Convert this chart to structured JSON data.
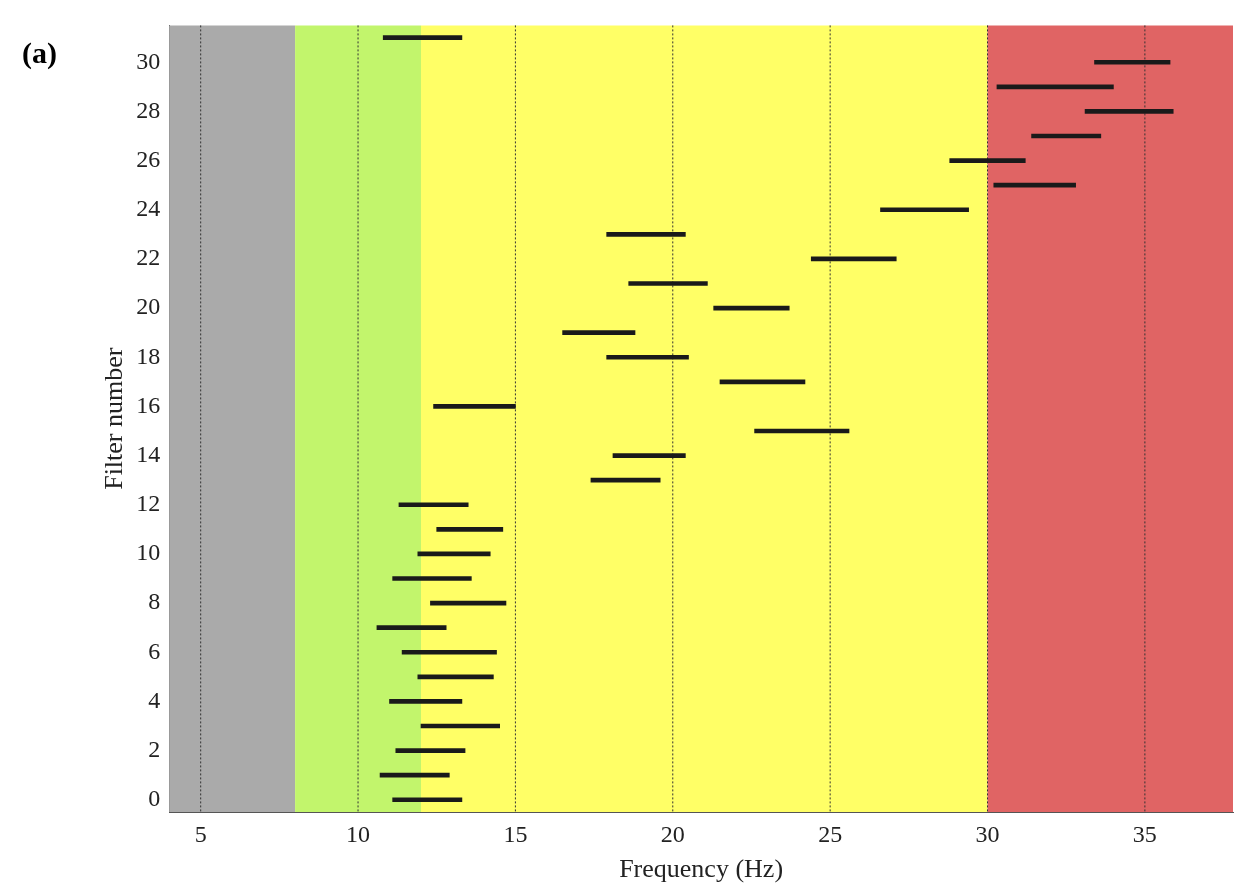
{
  "chart_data": {
    "type": "bar",
    "orientation": "horizontal",
    "xlabel": "Frequency (Hz)",
    "ylabel": "Filter number",
    "annotations": [
      "(a)"
    ],
    "categories": [
      null,
      "30",
      null,
      "28",
      null,
      "26",
      null,
      "24",
      null,
      "22",
      null,
      "20",
      null,
      "18",
      null,
      "16",
      null,
      "14",
      null,
      "12",
      null,
      "10",
      null,
      "8",
      null,
      "6",
      null,
      "4",
      null,
      "2",
      null,
      "0"
    ],
    "base": [
      10.8,
      33.4,
      30.3,
      33.1,
      31.4,
      28.8,
      30.2,
      26.6,
      17.9,
      24.4,
      18.6,
      21.3,
      16.5,
      17.9,
      21.5,
      12.4,
      22.6,
      18.1,
      17.4,
      11.3,
      12.5,
      11.9,
      11.1,
      12.3,
      10.6,
      11.4,
      11.9,
      11.0,
      12.0,
      11.2,
      10.7,
      11.1
    ],
    "values": [
      2.5,
      2.4,
      3.7,
      2.8,
      2.2,
      2.4,
      2.6,
      2.8,
      2.5,
      2.7,
      2.5,
      2.4,
      2.3,
      2.6,
      2.7,
      2.6,
      3.0,
      2.3,
      2.2,
      2.2,
      2.1,
      2.3,
      2.5,
      2.4,
      2.2,
      3.0,
      2.4,
      2.3,
      2.5,
      2.2,
      2.2,
      2.2
    ],
    "color": "#1a1a1a",
    "xlim": [
      4,
      37.8
    ],
    "xticks": [
      5,
      10,
      15,
      20,
      25,
      30,
      35
    ],
    "grid": "x",
    "legend": false,
    "bands": [
      {
        "axis": "x",
        "from": 4,
        "to": 8,
        "color": "#aaaaaa"
      },
      {
        "axis": "x",
        "from": 8,
        "to": 12,
        "color": "#c2f56c"
      },
      {
        "axis": "x",
        "from": 12,
        "to": 30,
        "color": "#ffff66"
      },
      {
        "axis": "x",
        "from": 30,
        "to": 37.8,
        "color": "#e06464"
      }
    ]
  }
}
